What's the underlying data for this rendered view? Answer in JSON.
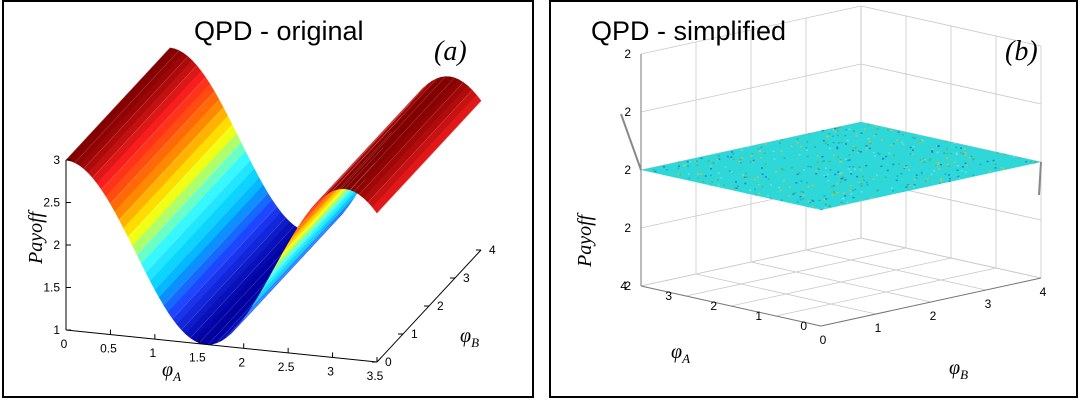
{
  "chart_data": [
    {
      "type": "surface",
      "title": "QPD - original",
      "panel_label": "(a)",
      "xlabel": "φA",
      "ylabel": "φB",
      "zlabel": "Payoff",
      "xlim": [
        0,
        3.5
      ],
      "ylim": [
        0,
        4
      ],
      "zlim": [
        1,
        3
      ],
      "x_ticks": [
        "0",
        "0.5",
        "1",
        "1.5",
        "2",
        "2.5",
        "3",
        "3.5"
      ],
      "y_ticks": [
        "0",
        "1",
        "2",
        "3",
        "4"
      ],
      "z_ticks": [
        "1",
        "1.5",
        "2",
        "2.5",
        "3"
      ],
      "surface": "Payoff = 2 + cos(2·φA), constant along φB",
      "colormap": [
        "#0000a0",
        "#2040ff",
        "#00c8ff",
        "#40ffff",
        "#ffff00",
        "#ff8000",
        "#ff2020",
        "#800000"
      ]
    },
    {
      "type": "surface",
      "title": "QPD - simplified",
      "panel_label": "(b)",
      "xlabel": "φA",
      "ylabel": "φB",
      "zlabel": "Payoff",
      "xlim": [
        0,
        4
      ],
      "ylim": [
        0,
        4
      ],
      "zlim": [
        2,
        2
      ],
      "x_ticks": [
        "0",
        "1",
        "2",
        "3",
        "4"
      ],
      "y_ticks": [
        "0",
        "1",
        "2",
        "3",
        "4"
      ],
      "z_ticks": [
        "2",
        "2",
        "2",
        "2",
        "2"
      ],
      "surface": "Payoff = 2 (flat plane)",
      "plane_color": "#2fd8d8",
      "grid": true
    }
  ]
}
